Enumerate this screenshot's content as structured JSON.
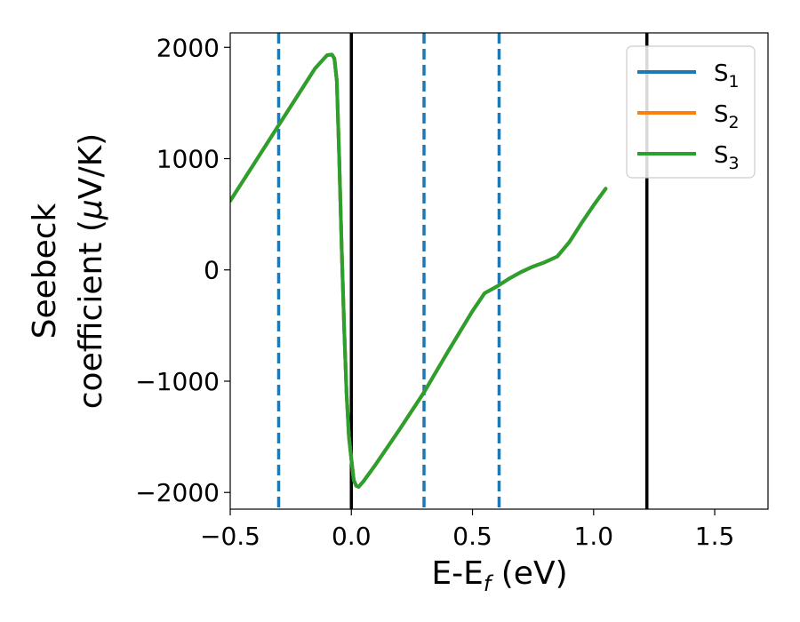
{
  "chart_data": {
    "type": "line",
    "xlabel": "E-E",
    "xlabel_sub": "f",
    "xlabel_unit": " (eV)",
    "ylabel_line1": "Seebeck",
    "ylabel_line2": "coefficient  (",
    "ylabel_mu": "μ",
    "ylabel_unit": "V/K)",
    "xlim": [
      -0.5,
      1.72
    ],
    "ylim": [
      -2150,
      2130
    ],
    "xticks": [
      -0.5,
      0.0,
      0.5,
      1.0,
      1.5
    ],
    "xtick_labels": [
      "−0.5",
      "0.0",
      "0.5",
      "1.0",
      "1.5"
    ],
    "yticks": [
      2000,
      1000,
      0,
      -1000,
      -2000
    ],
    "ytick_labels": [
      "2000",
      "1000",
      "0",
      "−1000",
      "−2000"
    ],
    "grid": false,
    "legend_position": "top-right",
    "vlines": [
      {
        "x": -0.3,
        "style": "dashed",
        "color": "#1f77b4"
      },
      {
        "x": 0.0,
        "style": "solid",
        "color": "#000000"
      },
      {
        "x": 0.3,
        "style": "dashed",
        "color": "#1f77b4"
      },
      {
        "x": 0.61,
        "style": "dashed",
        "color": "#1f77b4"
      },
      {
        "x": 1.22,
        "style": "solid",
        "color": "#000000"
      }
    ],
    "series": [
      {
        "name": "S",
        "sub": "1",
        "color": "#1f77b4",
        "x": [
          -0.5,
          -0.4,
          -0.3,
          -0.2,
          -0.15,
          -0.1,
          -0.08,
          -0.07,
          -0.06,
          -0.05,
          -0.04,
          -0.03,
          -0.02,
          -0.01,
          0.0,
          0.01,
          0.02,
          0.03,
          0.05,
          0.1,
          0.2,
          0.3,
          0.4,
          0.5,
          0.55,
          0.6,
          0.65,
          0.7,
          0.75,
          0.8,
          0.85,
          0.9,
          0.95,
          1.0,
          1.05
        ],
        "y": [
          620,
          960,
          1300,
          1640,
          1810,
          1930,
          1935,
          1900,
          1700,
          1000,
          200,
          -500,
          -1100,
          -1500,
          -1700,
          -1890,
          -1940,
          -1950,
          -1900,
          -1750,
          -1430,
          -1100,
          -730,
          -370,
          -210,
          -150,
          -80,
          -20,
          30,
          70,
          120,
          250,
          420,
          580,
          730
        ]
      },
      {
        "name": "S",
        "sub": "2",
        "color": "#ff7f0e",
        "x": [
          -0.5,
          -0.4,
          -0.3,
          -0.2,
          -0.15,
          -0.1,
          -0.08,
          -0.07,
          -0.06,
          -0.05,
          -0.04,
          -0.03,
          -0.02,
          -0.01,
          0.0,
          0.01,
          0.02,
          0.03,
          0.05,
          0.1,
          0.2,
          0.3,
          0.4,
          0.5,
          0.55,
          0.6,
          0.65,
          0.7,
          0.75,
          0.8,
          0.85,
          0.9,
          0.95,
          1.0,
          1.05
        ],
        "y": [
          620,
          960,
          1300,
          1640,
          1810,
          1930,
          1935,
          1900,
          1700,
          1000,
          200,
          -500,
          -1100,
          -1500,
          -1700,
          -1890,
          -1940,
          -1950,
          -1900,
          -1750,
          -1430,
          -1100,
          -730,
          -370,
          -210,
          -150,
          -80,
          -20,
          30,
          70,
          120,
          250,
          420,
          580,
          730
        ]
      },
      {
        "name": "S",
        "sub": "3",
        "color": "#2ca02c",
        "x": [
          -0.5,
          -0.4,
          -0.3,
          -0.2,
          -0.15,
          -0.1,
          -0.08,
          -0.07,
          -0.06,
          -0.05,
          -0.04,
          -0.03,
          -0.02,
          -0.01,
          0.0,
          0.01,
          0.02,
          0.03,
          0.05,
          0.1,
          0.2,
          0.3,
          0.4,
          0.5,
          0.55,
          0.6,
          0.65,
          0.7,
          0.75,
          0.8,
          0.85,
          0.9,
          0.95,
          1.0,
          1.05
        ],
        "y": [
          620,
          960,
          1300,
          1640,
          1810,
          1930,
          1935,
          1900,
          1700,
          1000,
          200,
          -500,
          -1100,
          -1500,
          -1700,
          -1890,
          -1940,
          -1950,
          -1900,
          -1750,
          -1430,
          -1100,
          -730,
          -370,
          -210,
          -150,
          -80,
          -20,
          30,
          70,
          120,
          250,
          420,
          580,
          730
        ]
      }
    ]
  }
}
